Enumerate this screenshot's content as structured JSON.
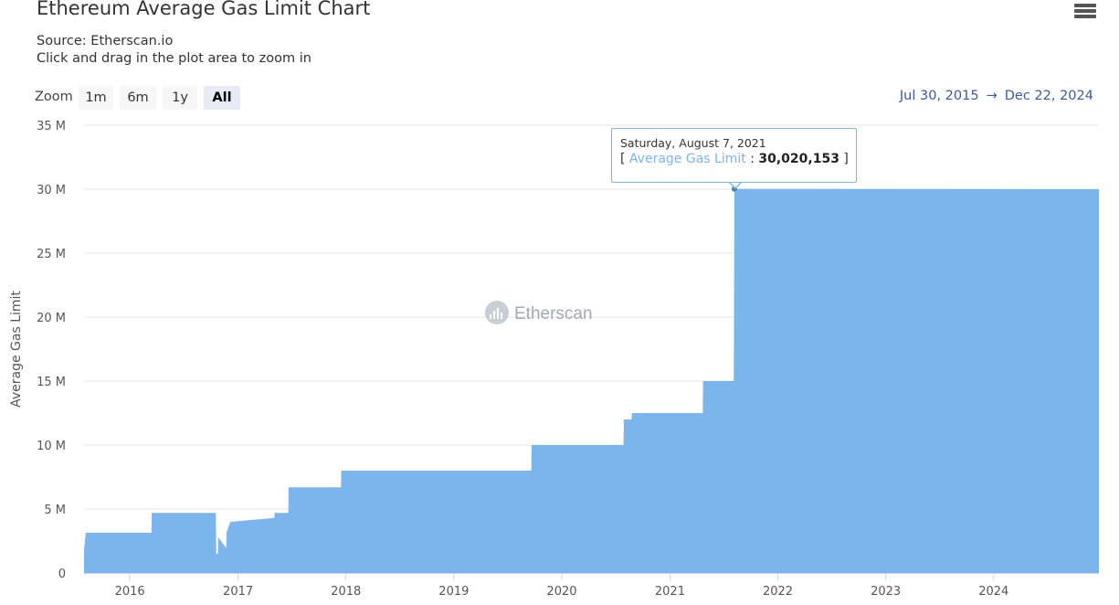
{
  "header": {
    "title": "Ethereum Average Gas Limit Chart",
    "source": "Source: Etherscan.io",
    "hint": "Click and drag in the plot area to zoom in",
    "menu_icon": "hamburger-menu-icon"
  },
  "zoom": {
    "label": "Zoom",
    "buttons": [
      "1m",
      "6m",
      "1y",
      "All"
    ],
    "active": "All"
  },
  "range": {
    "from": "Jul 30, 2015",
    "arrow": "→",
    "to": "Dec 22, 2024"
  },
  "watermark": "Etherscan",
  "tooltip": {
    "date": "Saturday, August 7, 2021",
    "series": "Average Gas Limit",
    "value": "30,020,153"
  },
  "colors": {
    "area": "#7cb5ec",
    "grid": "#e6e6e6",
    "link": "#3c5a99"
  },
  "chart_data": {
    "type": "area",
    "title": "Ethereum Average Gas Limit Chart",
    "ylabel": "Average Gas Limit",
    "xlabel": "",
    "ylim": [
      0,
      35000000
    ],
    "xlim": [
      "2015-07-30",
      "2024-12-22"
    ],
    "y_ticks": [
      "0",
      "5 M",
      "10 M",
      "15 M",
      "20 M",
      "25 M",
      "30 M",
      "35 M"
    ],
    "x_ticks": [
      "2016",
      "2017",
      "2018",
      "2019",
      "2020",
      "2021",
      "2022",
      "2023",
      "2024"
    ],
    "grid": true,
    "series": [
      {
        "name": "Average Gas Limit",
        "x": [
          "2015-07-30",
          "2015-08-05",
          "2016-03-14",
          "2016-03-15",
          "2016-10-18",
          "2016-10-19",
          "2016-10-25",
          "2016-10-26",
          "2016-11-22",
          "2016-11-23",
          "2016-12-06",
          "2016-12-07",
          "2017-05-04",
          "2017-05-05",
          "2017-06-20",
          "2017-06-21",
          "2017-12-15",
          "2017-12-16",
          "2019-09-20",
          "2019-09-21",
          "2020-07-28",
          "2020-07-29",
          "2020-08-24",
          "2020-08-25",
          "2021-04-22",
          "2021-04-23",
          "2021-08-05",
          "2021-08-07",
          "2024-12-22"
        ],
        "values": [
          1800000,
          3150000,
          3150000,
          4700000,
          4700000,
          1500000,
          1500000,
          2800000,
          1950000,
          3200000,
          4000000,
          4000000,
          4300000,
          4700000,
          4700000,
          6700000,
          6700000,
          8000000,
          8000000,
          10000000,
          10000000,
          12000000,
          12000000,
          12500000,
          12500000,
          15000000,
          15000000,
          30020153,
          30000000
        ]
      }
    ]
  }
}
